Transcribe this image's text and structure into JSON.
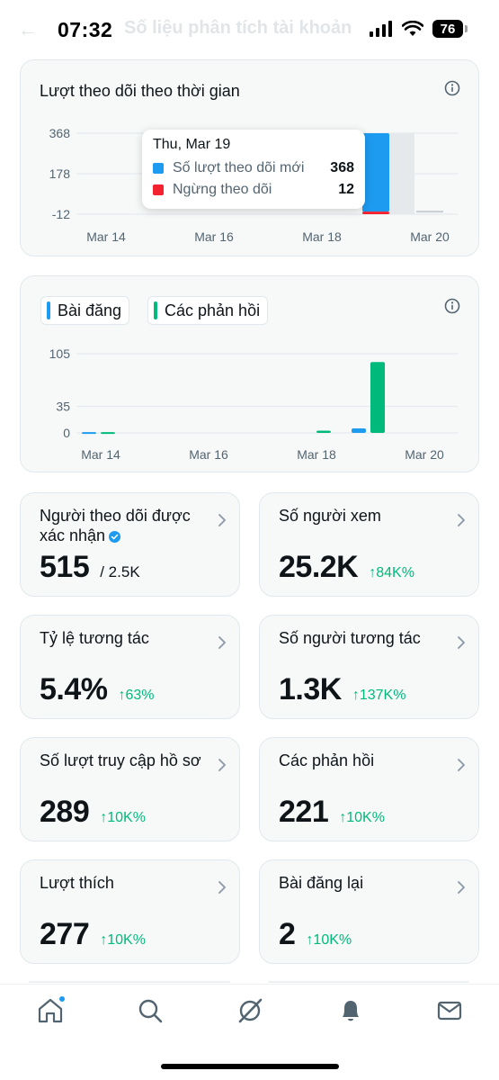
{
  "status_bar": {
    "time": "07:32",
    "battery": "76",
    "background_title": "Số liệu phân tích tài khoản"
  },
  "follower_chart": {
    "title": "Lượt theo dõi theo thời gian",
    "info_icon": "info-circle-icon",
    "chart_data": {
      "type": "bar",
      "categories": [
        "Mar 14",
        "Mar 15",
        "Mar 16",
        "Mar 17",
        "Mar 18",
        "Mar 19",
        "Mar 20"
      ],
      "x_tick_labels": [
        "Mar 14",
        "Mar 16",
        "Mar 18",
        "Mar 20"
      ],
      "y_tick_labels": [
        "368",
        "178",
        "-12"
      ],
      "ylim": [
        -12,
        368
      ],
      "series": [
        {
          "name": "Số lượt theo dõi mới",
          "color": "#1d9bf0",
          "values": [
            0,
            0,
            0,
            0,
            0,
            368,
            0
          ]
        },
        {
          "name": "Ngừng theo dõi",
          "color": "#f4212e",
          "values": [
            0,
            0,
            0,
            0,
            0,
            -12,
            0
          ]
        }
      ],
      "highlighted_category": "Mar 19"
    },
    "tooltip": {
      "date": "Thu, Mar 19",
      "rows": [
        {
          "label": "Số lượt theo dõi mới",
          "value": "368",
          "color": "#1d9bf0"
        },
        {
          "label": "Ngừng theo dõi",
          "value": "12",
          "color": "#f4212e"
        }
      ]
    }
  },
  "activity_chart": {
    "legend": [
      {
        "label": "Bài đăng",
        "color": "#1d9bf0"
      },
      {
        "label": "Các phản hồi",
        "color": "#00ba7c"
      }
    ],
    "info_icon": "info-circle-icon",
    "chart_data": {
      "type": "bar",
      "categories": [
        "Mar 14",
        "Mar 15",
        "Mar 16",
        "Mar 17",
        "Mar 18",
        "Mar 19",
        "Mar 20"
      ],
      "x_tick_labels": [
        "Mar 14",
        "Mar 16",
        "Mar 18",
        "Mar 20"
      ],
      "y_tick_labels": [
        "105",
        "35",
        "0"
      ],
      "ylim": [
        0,
        105
      ],
      "series": [
        {
          "name": "Bài đăng",
          "color": "#1d9bf0",
          "values": [
            1,
            0,
            0,
            0,
            0,
            6,
            0
          ]
        },
        {
          "name": "Các phản hồi",
          "color": "#00ba7c",
          "values": [
            1,
            0,
            0,
            0,
            3,
            94,
            0
          ]
        }
      ]
    }
  },
  "metrics": [
    {
      "label": "Người theo dõi được xác nhận",
      "value": "515",
      "sub": "/ 2.5K",
      "change": "",
      "verified": true
    },
    {
      "label": "Số người xem",
      "value": "25.2K",
      "sub": "",
      "change": "↑84K%"
    },
    {
      "label": "Tỷ lệ tương tác",
      "value": "5.4%",
      "sub": "",
      "change": "↑63%"
    },
    {
      "label": "Số người tương tác",
      "value": "1.3K",
      "sub": "",
      "change": "↑137K%"
    },
    {
      "label": "Số lượt truy cập hồ sơ",
      "value": "289",
      "sub": "",
      "change": "↑10K%"
    },
    {
      "label": "Các phản hồi",
      "value": "221",
      "sub": "",
      "change": "↑10K%"
    },
    {
      "label": "Lượt thích",
      "value": "277",
      "sub": "",
      "change": "↑10K%"
    },
    {
      "label": "Bài đăng lại",
      "value": "2",
      "sub": "",
      "change": "↑10K%"
    }
  ],
  "bottom_nav": {
    "items": [
      "home-icon",
      "search-icon",
      "grok-icon",
      "notifications-icon",
      "messages-icon"
    ],
    "accent": "#1d9bf0"
  }
}
